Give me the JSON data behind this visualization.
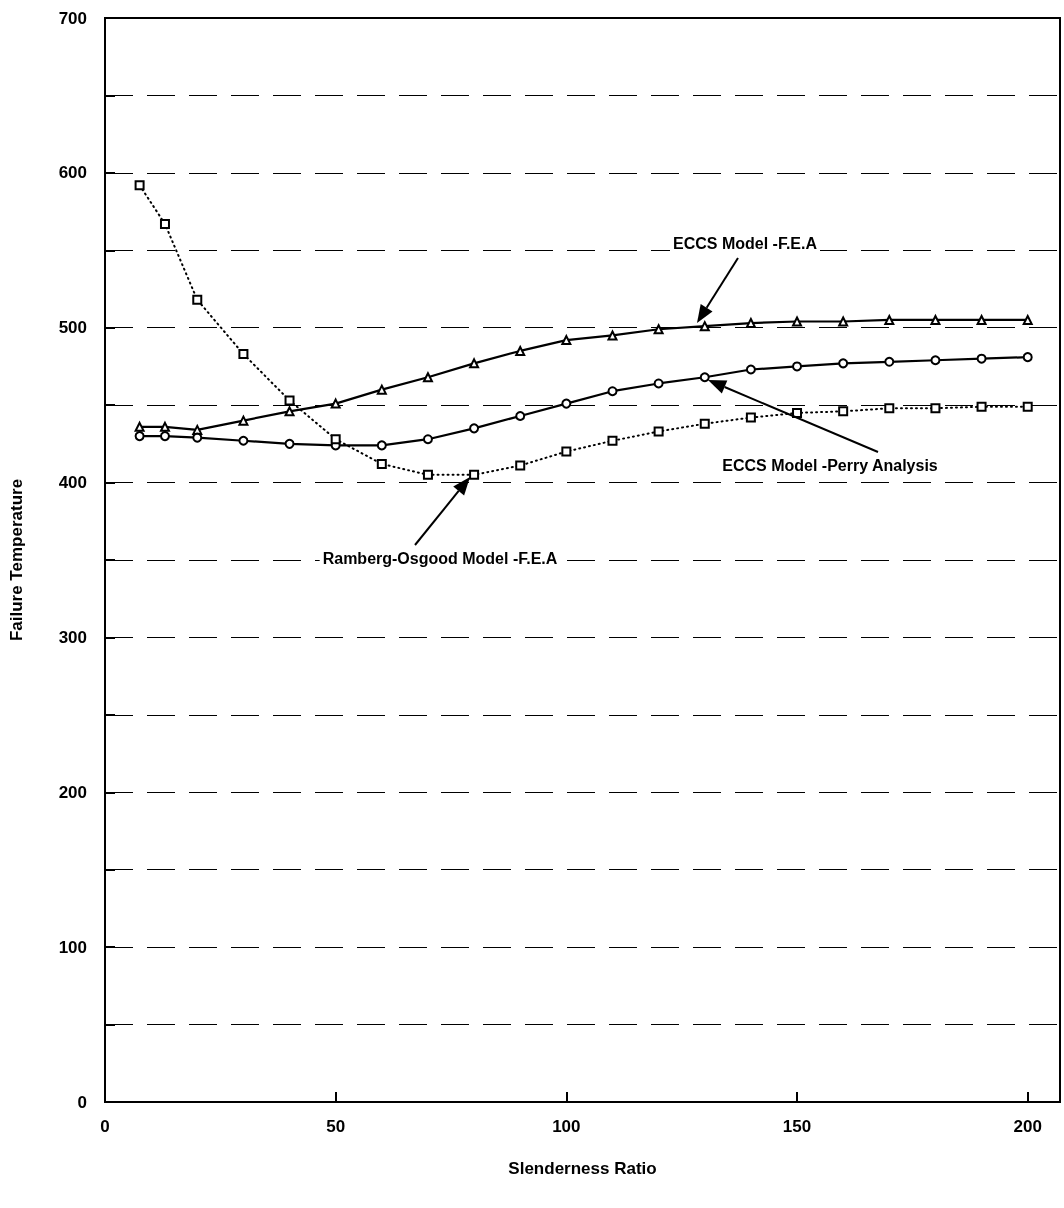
{
  "chart_data": {
    "type": "line",
    "xlabel": "Slenderness Ratio",
    "ylabel": "Failure Temperature",
    "xlim": [
      0,
      207
    ],
    "xticks": [
      0,
      50,
      100,
      150,
      200
    ],
    "ylim": [
      0,
      700
    ],
    "yticks": [
      0,
      {
        "value": 50,
        "label": null
      },
      100,
      {
        "value": 150,
        "label": null
      },
      200,
      {
        "value": 250,
        "label": null
      },
      300,
      {
        "value": 350,
        "label": null
      },
      400,
      {
        "value": 450,
        "label": null
      },
      500,
      {
        "value": 550,
        "label": null
      },
      600,
      {
        "value": 650,
        "label": null
      },
      700
    ],
    "grid": "y",
    "x": [
      7.5,
      13,
      20,
      30,
      40,
      50,
      60,
      70,
      80,
      90,
      100,
      110,
      120,
      130,
      140,
      150,
      160,
      170,
      180,
      190,
      200
    ],
    "series": [
      {
        "color": "#000000",
        "marker": "triangle",
        "line_style": "solid",
        "values": [
          436,
          436,
          434,
          440,
          446,
          451,
          460,
          468,
          477,
          485,
          492,
          495,
          499,
          501,
          503,
          504,
          504,
          505,
          505,
          505,
          505
        ]
      },
      {
        "color": "#000000",
        "marker": "circle",
        "line_style": "solid",
        "values": [
          430,
          430,
          429,
          427,
          425,
          424,
          424,
          428,
          435,
          443,
          451,
          459,
          464,
          468,
          473,
          475,
          477,
          478,
          479,
          480,
          481
        ]
      },
      {
        "color": "#000000",
        "marker": "square",
        "line_style": "dotted",
        "values": [
          592,
          567,
          518,
          483,
          453,
          428,
          412,
          405,
          405,
          411,
          420,
          427,
          433,
          438,
          442,
          445,
          446,
          448,
          448,
          449,
          449
        ]
      }
    ],
    "annotations": [
      "ECCS Model -F.E.A",
      "ECCS Model -Perry Analysis",
      "Ramberg-Osgood Model -F.E.A"
    ]
  }
}
